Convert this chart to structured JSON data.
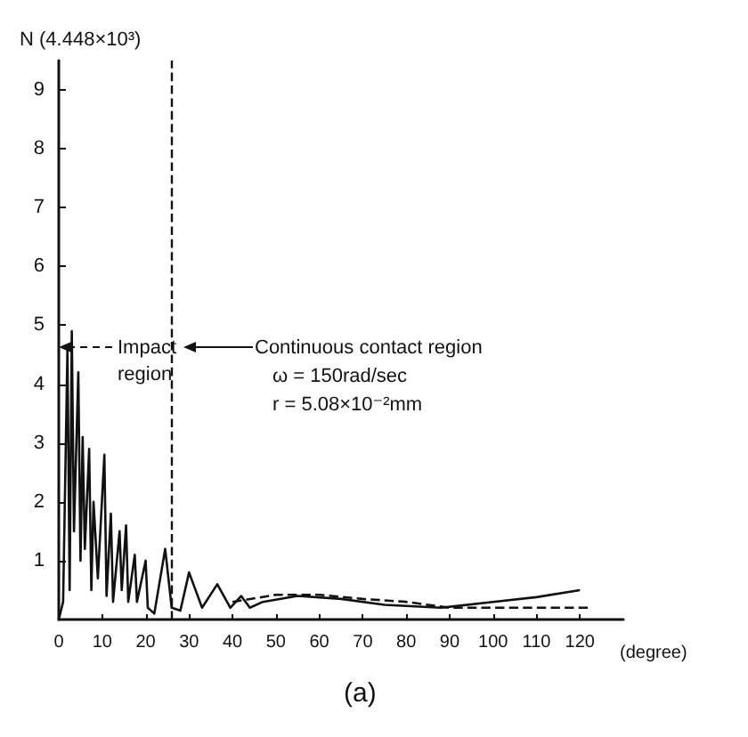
{
  "chart_data": {
    "type": "line",
    "ylabel": "N (4.448×10³)",
    "xlabel": "(degree)",
    "xlim": [
      0,
      130
    ],
    "xticks": [
      0,
      10,
      20,
      30,
      40,
      50,
      60,
      70,
      80,
      90,
      100,
      110,
      120
    ],
    "ylim": [
      0,
      9.5
    ],
    "yticks": [
      1,
      2,
      3,
      4,
      5,
      6,
      7,
      8,
      9
    ],
    "marker": "none",
    "grid": false,
    "series": [
      {
        "color": "#111111",
        "line_style": "solid",
        "x": [
          0,
          1,
          2,
          2.5,
          3,
          3.5,
          4.5,
          5,
          5.5,
          6,
          7,
          7.5,
          8,
          9,
          10.5,
          11,
          12,
          12.5,
          14,
          14.5,
          15.5,
          16,
          17.5,
          18,
          20,
          20.5,
          22,
          24.5,
          26,
          28,
          30,
          33,
          36.5,
          39.5,
          42,
          44,
          47,
          55,
          65,
          75,
          88,
          100,
          110,
          120
        ],
        "values": [
          0,
          0.3,
          4.6,
          0.5,
          4.9,
          1.5,
          4.2,
          1.0,
          3.1,
          1.2,
          2.9,
          0.5,
          2.0,
          0.7,
          2.8,
          0.4,
          1.8,
          0.3,
          1.5,
          0.5,
          1.6,
          0.3,
          1.1,
          0.3,
          1.0,
          0.2,
          0.1,
          1.2,
          0.2,
          0.15,
          0.8,
          0.2,
          0.6,
          0.2,
          0.4,
          0.2,
          0.3,
          0.4,
          0.35,
          0.25,
          0.2,
          0.3,
          0.38,
          0.5
        ]
      },
      {
        "color": "#111111",
        "line_style": "dashed",
        "x": [
          40,
          50,
          60,
          70,
          80,
          90,
          100,
          110,
          122
        ],
        "values": [
          0.3,
          0.42,
          0.42,
          0.35,
          0.3,
          0.2,
          0.2,
          0.2,
          0.2
        ]
      }
    ],
    "ref_lines": [
      {
        "axis": "x",
        "value": 26,
        "line_style": "dashed",
        "color": "#111111"
      }
    ],
    "annotations": [
      "Impact region",
      "Continuous contact region",
      "ω = 150rad/sec",
      "r = 5.08×10⁻²mm",
      "(a)"
    ]
  }
}
